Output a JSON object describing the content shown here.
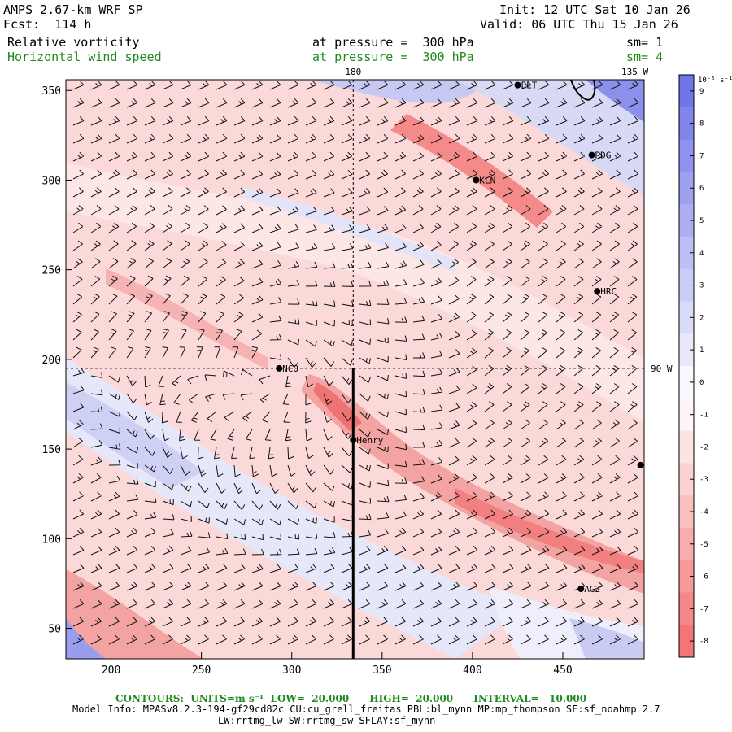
{
  "header": {
    "model": "AMPS 2.67-km WRF SP",
    "forecast": "Fcst:  114 h",
    "init": "Init: 12 UTC Sat 10 Jan 26",
    "valid": "Valid: 06 UTC Thu 15 Jan 26",
    "field1_name": "Relative vorticity",
    "field1_level": "at pressure =  300 hPa",
    "field1_sm": "sm= 1",
    "field2_name": "Horizontal wind speed",
    "field2_level": "at pressure =  300 hPa",
    "field2_sm": "sm= 4"
  },
  "colors": {
    "positive": "#6a6ee8",
    "negative": "#f05a5a",
    "neutral": "#ffffff",
    "contour_text": "#1f8a1f"
  },
  "chart_data": {
    "type": "heatmap",
    "x_ticks": [
      "200",
      "250",
      "300",
      "350",
      "400",
      "450"
    ],
    "x_values": [
      200,
      250,
      300,
      350,
      400,
      450
    ],
    "y_ticks": [
      "350",
      "300",
      "250",
      "200",
      "150",
      "100",
      "50"
    ],
    "y_values": [
      350,
      300,
      250,
      200,
      150,
      100,
      50
    ],
    "xlim": [
      175,
      495
    ],
    "ylim": [
      33,
      356
    ],
    "meridian_180": {
      "label": "180",
      "x": 334
    },
    "meridian_135w": {
      "label": "135 W"
    },
    "meridian_90w": {
      "label": "90 W",
      "y": 195
    },
    "colorbar": {
      "unit_label": "10⁻⁵ s⁻¹",
      "ticks": [
        "9",
        "8",
        "7",
        "6",
        "5",
        "4",
        "3",
        "2",
        "1",
        "0",
        "-1",
        "-2",
        "-3",
        "-4",
        "-5",
        "-6",
        "-7",
        "-8"
      ],
      "values": [
        9,
        8,
        7,
        6,
        5,
        4,
        3,
        2,
        1,
        0,
        -1,
        -2,
        -3,
        -4,
        -5,
        -6,
        -7,
        -8
      ]
    },
    "stations": [
      {
        "name": "ELT",
        "x": 425,
        "y": 353
      },
      {
        "name": "RDG",
        "x": 466,
        "y": 314
      },
      {
        "name": "KLN",
        "x": 402,
        "y": 300
      },
      {
        "name": "HRC",
        "x": 469,
        "y": 238
      },
      {
        "name": "NCO",
        "x": 293,
        "y": 195
      },
      {
        "name": "Henry",
        "x": 334,
        "y": 155
      },
      {
        "name": "AG2",
        "x": 460,
        "y": 72
      },
      {
        "name": "",
        "x": 493,
        "y": 141
      }
    ]
  },
  "footer": {
    "contours_line": "CONTOURS:  UNITS=m s⁻¹  LOW=  20.000      HIGH=  20.000      INTERVAL=   10.000",
    "model_info": "Model Info: MPASv8.2.3-194-gf29cd82c CU:cu_grell_freitas PBL:bl_mynn MP:mp_thompson SF:sf_noahmp 2.7",
    "model_info2": "LW:rrtmg_lw SW:rrtmg_sw SFLAY:sf_mynn"
  }
}
